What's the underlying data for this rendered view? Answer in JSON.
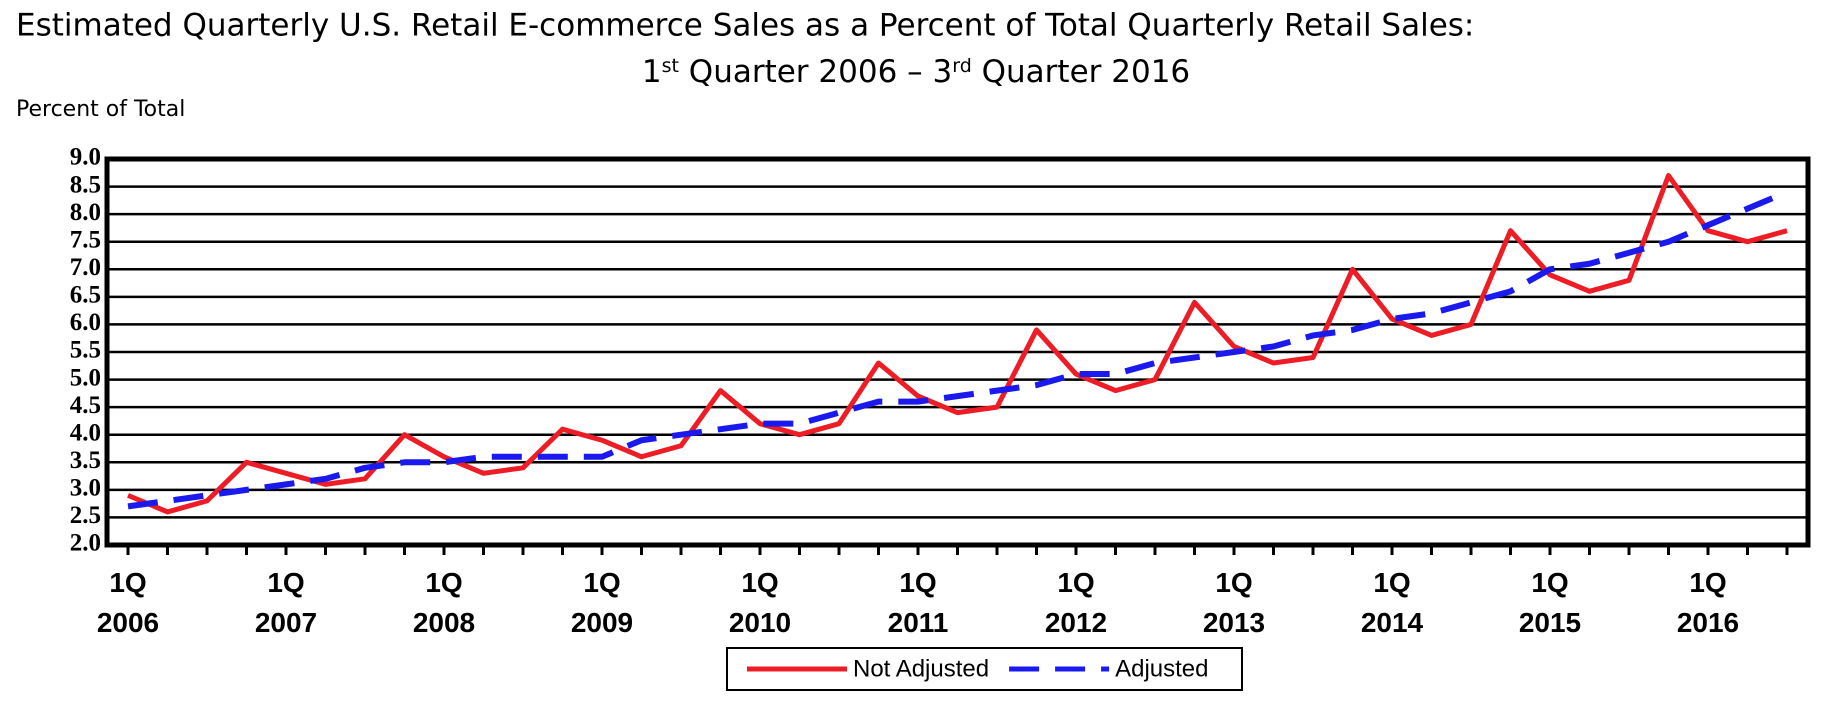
{
  "chart_data": {
    "type": "line",
    "title": "Estimated Quarterly U.S. Retail E-commerce Sales as a Percent of Total Quarterly Retail Sales:",
    "subtitle": [
      {
        "text": "1"
      },
      {
        "text": "st",
        "sup": true
      },
      {
        "text": " Quarter 2006 – 3"
      },
      {
        "text": "rd",
        "sup": true
      },
      {
        "text": " Quarter 2016"
      }
    ],
    "y_label": "Percent of Total",
    "categories": [
      "1Q\n2006",
      null,
      null,
      null,
      "1Q\n2007",
      null,
      null,
      null,
      "1Q\n2008",
      null,
      null,
      null,
      "1Q\n2009",
      null,
      null,
      null,
      "1Q\n2010",
      null,
      null,
      null,
      "1Q\n2011",
      null,
      null,
      null,
      "1Q\n2012",
      null,
      null,
      null,
      "1Q\n2013",
      null,
      null,
      null,
      "1Q\n2014",
      null,
      null,
      null,
      "1Q\n2015",
      null,
      null,
      null,
      "1Q\n2016",
      null,
      null
    ],
    "series": [
      {
        "name": "Not Adjusted",
        "color": "#ee1c24",
        "dashed": false,
        "values": [
          2.9,
          2.6,
          2.8,
          3.5,
          3.3,
          3.1,
          3.2,
          4.0,
          3.6,
          3.3,
          3.4,
          4.1,
          3.9,
          3.6,
          3.8,
          4.8,
          4.2,
          4.0,
          4.2,
          5.3,
          4.7,
          4.4,
          4.5,
          5.9,
          5.1,
          4.8,
          5.0,
          6.4,
          5.6,
          5.3,
          5.4,
          7.0,
          6.1,
          5.8,
          6.0,
          7.7,
          6.9,
          6.6,
          6.8,
          8.7,
          7.7,
          7.5,
          7.7
        ]
      },
      {
        "name": "Adjusted",
        "color": "#1a1aee",
        "dashed": true,
        "values": [
          2.7,
          2.8,
          2.9,
          3.0,
          3.1,
          3.2,
          3.4,
          3.5,
          3.5,
          3.6,
          3.6,
          3.6,
          3.6,
          3.9,
          4.0,
          4.1,
          4.2,
          4.2,
          4.4,
          4.6,
          4.6,
          4.7,
          4.8,
          4.9,
          5.1,
          5.1,
          5.3,
          5.4,
          5.5,
          5.6,
          5.8,
          5.9,
          6.1,
          6.2,
          6.4,
          6.6,
          7.0,
          7.1,
          7.3,
          7.5,
          7.8,
          8.1,
          8.4
        ]
      }
    ],
    "ylim": [
      2,
      9
    ],
    "yticks": [
      {
        "value": 2,
        "label": "2.0"
      },
      2.5,
      {
        "value": 3,
        "label": "3.0"
      },
      3.5,
      {
        "value": 4,
        "label": "4.0"
      },
      4.5,
      {
        "value": 5,
        "label": "5.0"
      },
      5.5,
      {
        "value": 6,
        "label": "6.0"
      },
      6.5,
      {
        "value": 7,
        "label": "7.0"
      },
      7.5,
      {
        "value": 8,
        "label": "8.0"
      },
      8.5,
      {
        "value": 9,
        "label": "9.0"
      }
    ],
    "grid": true,
    "legend": "bottom"
  }
}
